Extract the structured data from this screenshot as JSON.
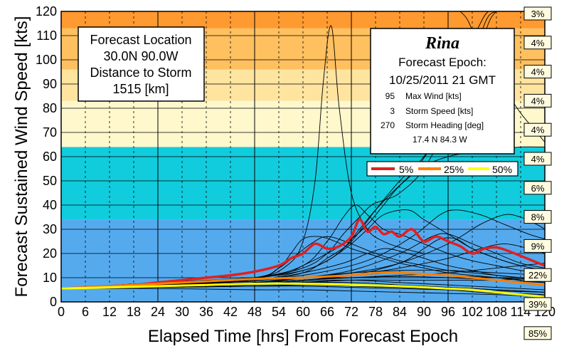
{
  "chart_data": {
    "type": "line",
    "xlabel": "Elapsed Time [hrs] From Forecast Epoch",
    "ylabel": "Forecast Sustained Wind Speed [kts]",
    "xlim": [
      0,
      120
    ],
    "ylim": [
      0,
      120
    ],
    "xticks": [
      0,
      6,
      12,
      18,
      24,
      30,
      36,
      42,
      48,
      54,
      60,
      66,
      72,
      78,
      84,
      90,
      96,
      102,
      108,
      114,
      120
    ],
    "yticks": [
      0,
      10,
      20,
      30,
      40,
      50,
      60,
      70,
      80,
      90,
      100,
      110,
      120
    ],
    "grid": true,
    "bands": [
      {
        "from": 0,
        "to": 34,
        "color": "#55aaee"
      },
      {
        "from": 34,
        "to": 64,
        "color": "#11ccdd"
      },
      {
        "from": 64,
        "to": 83,
        "color": "#fff8cc"
      },
      {
        "from": 83,
        "to": 96,
        "color": "#ffe4a0"
      },
      {
        "from": 96,
        "to": 113,
        "color": "#ffc060"
      },
      {
        "from": 113,
        "to": 120,
        "color": "#ff9a30"
      }
    ],
    "category_probabilities": [
      {
        "y": 120,
        "label": "3%"
      },
      {
        "y": 108,
        "label": "4%"
      },
      {
        "y": 96,
        "label": "4%"
      },
      {
        "y": 84,
        "label": "4%"
      },
      {
        "y": 72,
        "label": "4%"
      },
      {
        "y": 60,
        "label": "4%"
      },
      {
        "y": 48,
        "label": "6%"
      },
      {
        "y": 36,
        "label": "8%"
      },
      {
        "y": 24,
        "label": "9%"
      },
      {
        "y": 12,
        "label": "22%"
      },
      {
        "y": 0,
        "label": "39%"
      },
      {
        "y": -12,
        "label": "85%"
      }
    ],
    "info_left": {
      "line1": "Forecast Location",
      "line2": "30.0N  90.0W",
      "line3": "Distance to Storm",
      "line4": "1515   [km]"
    },
    "info_right": {
      "storm_name": "Rina",
      "epoch_label": "Forecast Epoch:",
      "epoch_value": "10/25/2011  21 GMT",
      "rows": [
        {
          "value": "95",
          "label": "Max Wind [kts]"
        },
        {
          "value": "3",
          "label": "Storm Speed [kts]"
        },
        {
          "value": "270",
          "label": "Storm Heading [deg]"
        }
      ],
      "position": "17.4 N  84.3 W"
    },
    "legend": [
      {
        "label": "5%",
        "color": "#e02020"
      },
      {
        "label": "25%",
        "color": "#ff8000"
      },
      {
        "label": "50%",
        "color": "#ffff00"
      }
    ],
    "series": [
      {
        "name": "5%",
        "color": "#e02020",
        "width": 3.5,
        "x": [
          0,
          6,
          12,
          18,
          24,
          30,
          36,
          42,
          48,
          54,
          57,
          60,
          63,
          66,
          69,
          72,
          74,
          76,
          78,
          80,
          82,
          84,
          87,
          90,
          93,
          96,
          99,
          102,
          105,
          108,
          111,
          114,
          117,
          120
        ],
        "y": [
          5.5,
          6,
          6.5,
          7,
          8,
          9,
          10,
          11,
          12.5,
          15,
          18,
          20,
          24,
          22,
          23,
          27,
          34,
          29,
          31,
          28,
          29,
          27,
          30,
          25,
          27,
          25,
          23,
          20,
          22,
          22.5,
          21,
          19,
          17,
          15
        ]
      },
      {
        "name": "25%",
        "color": "#ff8000",
        "width": 3,
        "x": [
          0,
          12,
          24,
          36,
          48,
          60,
          66,
          72,
          78,
          84,
          90,
          96,
          102,
          108,
          114,
          120
        ],
        "y": [
          5.5,
          6.5,
          7.5,
          8.5,
          9.5,
          10,
          10.5,
          11,
          12,
          12,
          11.5,
          11,
          10,
          9,
          8,
          7
        ]
      },
      {
        "name": "50%",
        "color": "#ffff00",
        "width": 3,
        "x": [
          0,
          12,
          24,
          36,
          48,
          60,
          72,
          84,
          96,
          102,
          108,
          114,
          120
        ],
        "y": [
          5.5,
          6,
          6.5,
          7,
          7.5,
          7.5,
          7,
          6.5,
          5.5,
          5,
          4,
          3,
          2
        ]
      }
    ],
    "ensemble_members": [
      {
        "x": [
          0,
          24,
          48,
          56,
          60,
          63,
          65,
          67,
          69,
          72,
          76,
          80,
          85,
          90
        ],
        "y": [
          5.5,
          8,
          10,
          15,
          25,
          50,
          90,
          114,
          80,
          45,
          30,
          25,
          22,
          20
        ]
      },
      {
        "x": [
          0,
          24,
          48,
          60,
          66,
          70,
          73,
          76,
          80,
          84,
          90,
          96,
          102,
          108,
          114,
          120
        ],
        "y": [
          5.5,
          7.5,
          10,
          15,
          25,
          35,
          40,
          36,
          30,
          28,
          24,
          20,
          17,
          15,
          13,
          12
        ]
      },
      {
        "x": [
          0,
          24,
          48,
          60,
          66,
          70,
          74,
          77,
          80,
          84,
          90,
          96,
          100,
          104,
          106,
          108
        ],
        "y": [
          5.5,
          7.5,
          10,
          14,
          20,
          28,
          35,
          40,
          42,
          45,
          55,
          75,
          100,
          115,
          120,
          120
        ]
      },
      {
        "x": [
          0,
          24,
          48,
          60,
          66,
          72,
          78,
          84,
          90,
          96,
          102,
          106,
          108
        ],
        "y": [
          5.5,
          7,
          9,
          12,
          18,
          25,
          38,
          50,
          60,
          75,
          95,
          115,
          120
        ]
      },
      {
        "x": [
          0,
          24,
          48,
          60,
          66,
          70,
          74,
          78,
          82,
          88,
          94,
          100,
          104,
          106,
          108
        ],
        "y": [
          5.5,
          8,
          10,
          13,
          17,
          22,
          30,
          38,
          45,
          55,
          70,
          90,
          110,
          118,
          120
        ]
      },
      {
        "x": [
          99,
          101,
          104,
          107,
          110,
          114,
          118,
          120
        ],
        "y": [
          120,
          116,
          104,
          96,
          88,
          78,
          70,
          66
        ]
      },
      {
        "x": [
          0,
          24,
          48,
          56,
          60,
          66,
          72,
          76,
          80,
          84,
          90,
          96,
          102,
          108,
          114,
          120
        ],
        "y": [
          5.5,
          7.5,
          10,
          12,
          15,
          20,
          26,
          32,
          40,
          48,
          56,
          60,
          62,
          63,
          64,
          64
        ]
      },
      {
        "x": [
          0,
          24,
          48,
          60,
          66,
          72,
          76,
          80,
          86,
          90,
          96,
          102,
          108,
          114,
          120
        ],
        "y": [
          5.5,
          7,
          9,
          13,
          17,
          24,
          30,
          36,
          38,
          34,
          28,
          22,
          18,
          15,
          13
        ]
      },
      {
        "x": [
          0,
          24,
          48,
          54,
          58,
          62,
          66,
          72,
          78,
          84,
          90,
          96,
          102,
          108,
          114,
          120
        ],
        "y": [
          5.5,
          7,
          10,
          14,
          19,
          24,
          27,
          24,
          20,
          17,
          15,
          13,
          12,
          11,
          10,
          9
        ]
      },
      {
        "x": [
          0,
          24,
          48,
          54,
          57,
          60,
          64,
          68,
          72,
          78,
          84,
          90,
          96,
          102,
          108,
          114,
          120
        ],
        "y": [
          5.5,
          7,
          10,
          14,
          20,
          26,
          27,
          25,
          22,
          19,
          16,
          14,
          12,
          11,
          10,
          9,
          8
        ]
      },
      {
        "x": [
          0,
          24,
          48,
          60,
          72,
          80,
          88,
          94,
          98,
          104,
          110,
          116,
          120
        ],
        "y": [
          5.5,
          7,
          9,
          11,
          15,
          20,
          28,
          36,
          38,
          36,
          32,
          28,
          26
        ]
      },
      {
        "x": [
          0,
          24,
          48,
          60,
          72,
          84,
          96,
          104,
          110,
          114,
          118,
          120
        ],
        "y": [
          5.5,
          7,
          8,
          10,
          12,
          16,
          24,
          32,
          36,
          35,
          32,
          30
        ]
      },
      {
        "x": [
          0,
          24,
          48,
          60,
          72,
          84,
          92,
          96,
          102,
          108,
          114,
          120
        ],
        "y": [
          5.5,
          7,
          8,
          10,
          13,
          20,
          27,
          28,
          24,
          20,
          16,
          14
        ]
      },
      {
        "x": [
          0,
          24,
          48,
          60,
          70,
          76,
          80,
          84,
          90,
          96,
          102,
          108,
          114,
          120
        ],
        "y": [
          5.5,
          7,
          9,
          12,
          16,
          20,
          22,
          21,
          18,
          15,
          13,
          11,
          10,
          9
        ]
      },
      {
        "x": [
          0,
          24,
          48,
          60,
          72,
          84,
          90,
          94,
          98,
          102,
          108,
          114,
          120
        ],
        "y": [
          5.5,
          7,
          8,
          9,
          11,
          16,
          22,
          26,
          26,
          22,
          18,
          15,
          13
        ]
      },
      {
        "x": [
          0,
          24,
          48,
          60,
          72,
          84,
          96,
          104,
          110,
          116,
          120
        ],
        "y": [
          5.5,
          7,
          8,
          9,
          11,
          14,
          18,
          22,
          24,
          22,
          20
        ]
      },
      {
        "x": [
          0,
          24,
          48,
          60,
          72,
          84,
          96,
          108,
          114,
          120
        ],
        "y": [
          5.5,
          7,
          8,
          9,
          10,
          11,
          12,
          14,
          15,
          16
        ]
      },
      {
        "x": [
          0,
          24,
          48,
          60,
          72,
          84,
          96,
          108,
          120
        ],
        "y": [
          5.5,
          6.5,
          7.5,
          8,
          9,
          9,
          9,
          9,
          10
        ]
      },
      {
        "x": [
          0,
          24,
          48,
          60,
          72,
          84,
          96,
          108,
          120
        ],
        "y": [
          5.5,
          6.5,
          7.5,
          8,
          8,
          7,
          6,
          5,
          4
        ]
      },
      {
        "x": [
          0,
          24,
          48,
          60,
          72,
          84,
          96,
          108,
          120
        ],
        "y": [
          5.5,
          6,
          6.5,
          7,
          7,
          6.5,
          6,
          5,
          4
        ]
      },
      {
        "x": [
          0,
          24,
          48,
          60,
          72,
          84,
          96,
          108,
          120
        ],
        "y": [
          5.5,
          6.5,
          7,
          7.5,
          7,
          6,
          5,
          3.5,
          2.5
        ]
      },
      {
        "x": [
          0,
          24,
          48,
          60,
          72,
          84,
          96,
          108,
          120
        ],
        "y": [
          5.5,
          6.5,
          8,
          9,
          10,
          10.5,
          10,
          9,
          8
        ]
      },
      {
        "x": [
          0,
          24,
          48,
          60,
          72,
          84,
          96,
          108,
          120
        ],
        "y": [
          5.5,
          6,
          6.5,
          6.5,
          6,
          5.5,
          5,
          4.5,
          4
        ]
      },
      {
        "x": [
          0,
          24,
          48,
          60,
          72,
          84,
          96,
          108,
          120
        ],
        "y": [
          5.5,
          7,
          9,
          10,
          11,
          12,
          11,
          10,
          9
        ]
      },
      {
        "x": [
          0,
          24,
          48,
          60,
          72,
          84,
          96,
          108,
          120
        ],
        "y": [
          5.5,
          5.5,
          5,
          5,
          4.5,
          4,
          3.5,
          3,
          2
        ]
      },
      {
        "x": [
          0,
          24,
          48,
          60,
          72,
          84,
          96,
          108,
          120
        ],
        "y": [
          5.5,
          6.5,
          7.5,
          8.5,
          9,
          8,
          7,
          6,
          5
        ]
      },
      {
        "x": [
          0,
          24,
          48,
          60,
          72,
          84,
          96,
          108,
          120
        ],
        "y": [
          5.5,
          7,
          8.5,
          10,
          12,
          13,
          13,
          12,
          11
        ]
      },
      {
        "x": [
          0,
          24,
          48,
          60,
          72,
          84,
          96,
          108,
          120
        ],
        "y": [
          5.5,
          6,
          7,
          7,
          6.5,
          6,
          5.5,
          4,
          3
        ]
      }
    ]
  }
}
